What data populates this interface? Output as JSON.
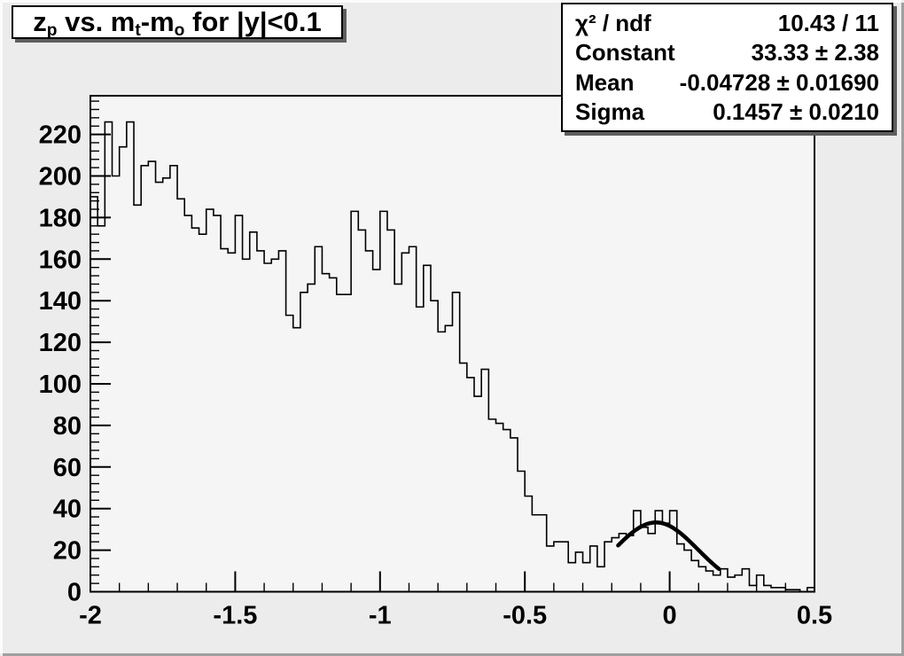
{
  "canvas": {
    "bg_color": "#ececec",
    "frame_color": "#f5f5f5",
    "line_color": "#000000",
    "fit_line_color": "#000000"
  },
  "title_box": {
    "plain_text": "zp vs. mt-mo for |y|<0.1",
    "segments": [
      {
        "text": "z"
      },
      {
        "text": "p",
        "sub": true
      },
      {
        "text": " vs. m"
      },
      {
        "text": "t",
        "sub": true
      },
      {
        "text": "-m"
      },
      {
        "text": "o",
        "sub": true
      },
      {
        "text": " for |y|<0.1"
      }
    ]
  },
  "stats_box": {
    "rows": [
      {
        "label": "χ² / ndf",
        "value": "10.43 / 11"
      },
      {
        "label": "Constant",
        "value": "33.33 ± 2.38"
      },
      {
        "label": "Mean",
        "value": "-0.04728 ± 0.01690"
      },
      {
        "label": "Sigma",
        "value": "0.1457 ± 0.0210"
      }
    ]
  },
  "chart_data": {
    "type": "bar",
    "style": "root-step-histogram",
    "title": "zp vs. mt-mo for |y|<0.1",
    "xlabel": "",
    "ylabel": "",
    "xlim": [
      -2,
      0.5
    ],
    "ylim": [
      0,
      238.6
    ],
    "grid": false,
    "x_ticks": [
      -2,
      -1.5,
      -1,
      -0.5,
      0,
      0.5
    ],
    "x_tick_labels": [
      "-2",
      "-1.5",
      "-1",
      "-0.5",
      "0",
      "0.5"
    ],
    "x_minor_step": 0.1,
    "y_ticks": [
      0,
      20,
      40,
      60,
      80,
      100,
      120,
      140,
      160,
      180,
      200,
      220
    ],
    "y_tick_labels": [
      "0",
      "20",
      "40",
      "60",
      "80",
      "100",
      "120",
      "140",
      "160",
      "180",
      "200",
      "220"
    ],
    "y_minor_step": 4,
    "bin_start": -2,
    "bin_width": 0.025,
    "values": [
      190,
      176,
      226,
      200,
      214,
      226,
      186,
      205,
      207,
      197,
      199,
      205,
      189,
      181,
      175,
      172,
      184,
      181,
      165,
      163,
      181,
      160,
      173,
      164,
      158,
      160,
      164,
      133,
      127,
      144,
      148,
      166,
      153,
      151,
      143,
      143,
      183,
      174,
      164,
      155,
      183,
      174,
      148,
      163,
      166,
      137,
      157,
      140,
      125,
      128,
      144,
      110,
      103,
      94,
      107,
      83,
      81,
      78,
      74,
      58,
      46,
      37,
      37,
      22,
      24,
      24,
      14,
      19,
      14,
      22,
      12,
      24,
      26,
      28,
      27,
      39,
      31,
      28,
      39,
      33,
      39,
      23,
      20,
      15,
      12,
      10,
      8,
      11,
      7,
      8,
      11,
      3,
      8,
      3,
      2,
      2,
      1,
      1,
      0,
      2
    ],
    "fit": {
      "shape": "gaussian",
      "constant": 33.33,
      "mean": -0.04728,
      "sigma": 0.1457,
      "chi2": 10.43,
      "ndf": 11,
      "draw_range": [
        -0.178,
        0.17
      ],
      "line_width": 4.5
    }
  }
}
